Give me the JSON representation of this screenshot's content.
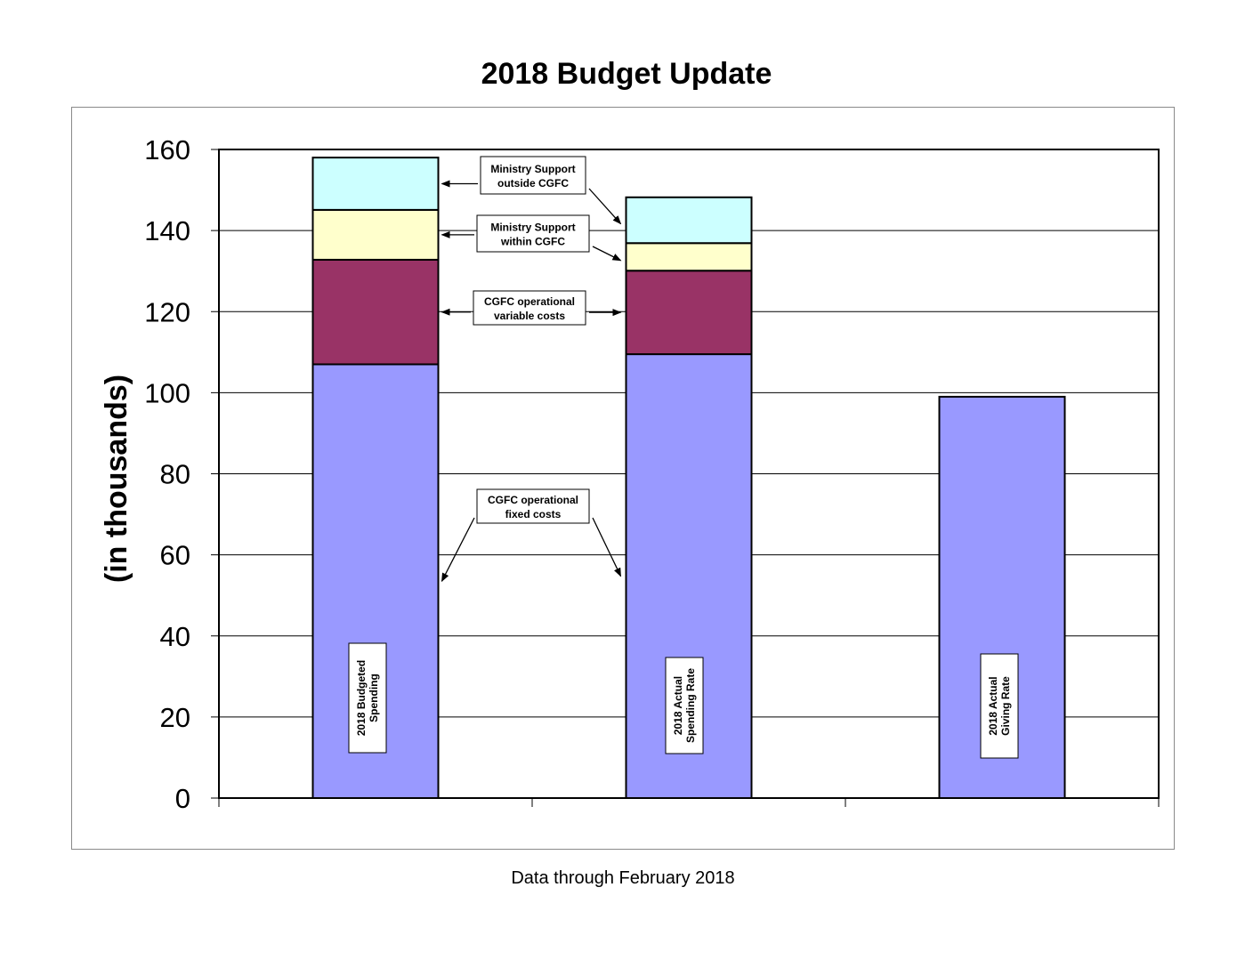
{
  "chart_data": {
    "type": "bar",
    "stacked": true,
    "title": "2018 Budget Update",
    "ylabel": "(in thousands)",
    "xlabel": "",
    "footer": "Data through February 2018",
    "ylim": [
      0,
      160
    ],
    "yticks": [
      0,
      20,
      40,
      60,
      80,
      100,
      120,
      140,
      160
    ],
    "grid": true,
    "categories": [
      "2018  Budgeted Spending",
      "2018 Actual Spending Rate",
      "2018 Actual Giving Rate"
    ],
    "category_label_lines": [
      [
        "2018  Budgeted",
        "Spending"
      ],
      [
        "2018 Actual",
        "Spending Rate"
      ],
      [
        "2018 Actual",
        "Giving Rate"
      ]
    ],
    "series": [
      {
        "name": "CGFC operational fixed costs",
        "label_lines": [
          "CGFC operational",
          "fixed costs"
        ],
        "color": "#9999ff",
        "values": [
          107,
          109.5,
          99
        ]
      },
      {
        "name": "CGFC operational variable costs",
        "label_lines": [
          "CGFC operational",
          "variable costs"
        ],
        "color": "#993366",
        "values": [
          25.8,
          20.6,
          0
        ]
      },
      {
        "name": "Ministry Support within  CGFC",
        "label_lines": [
          "Ministry Support",
          "within  CGFC"
        ],
        "color": "#ffffcc",
        "values": [
          12.3,
          6.8,
          0
        ]
      },
      {
        "name": "Ministry Support outside CGFC",
        "label_lines": [
          "Ministry Support",
          "outside CGFC"
        ],
        "color": "#ccffff",
        "values": [
          12.9,
          11.3,
          0
        ]
      }
    ]
  }
}
